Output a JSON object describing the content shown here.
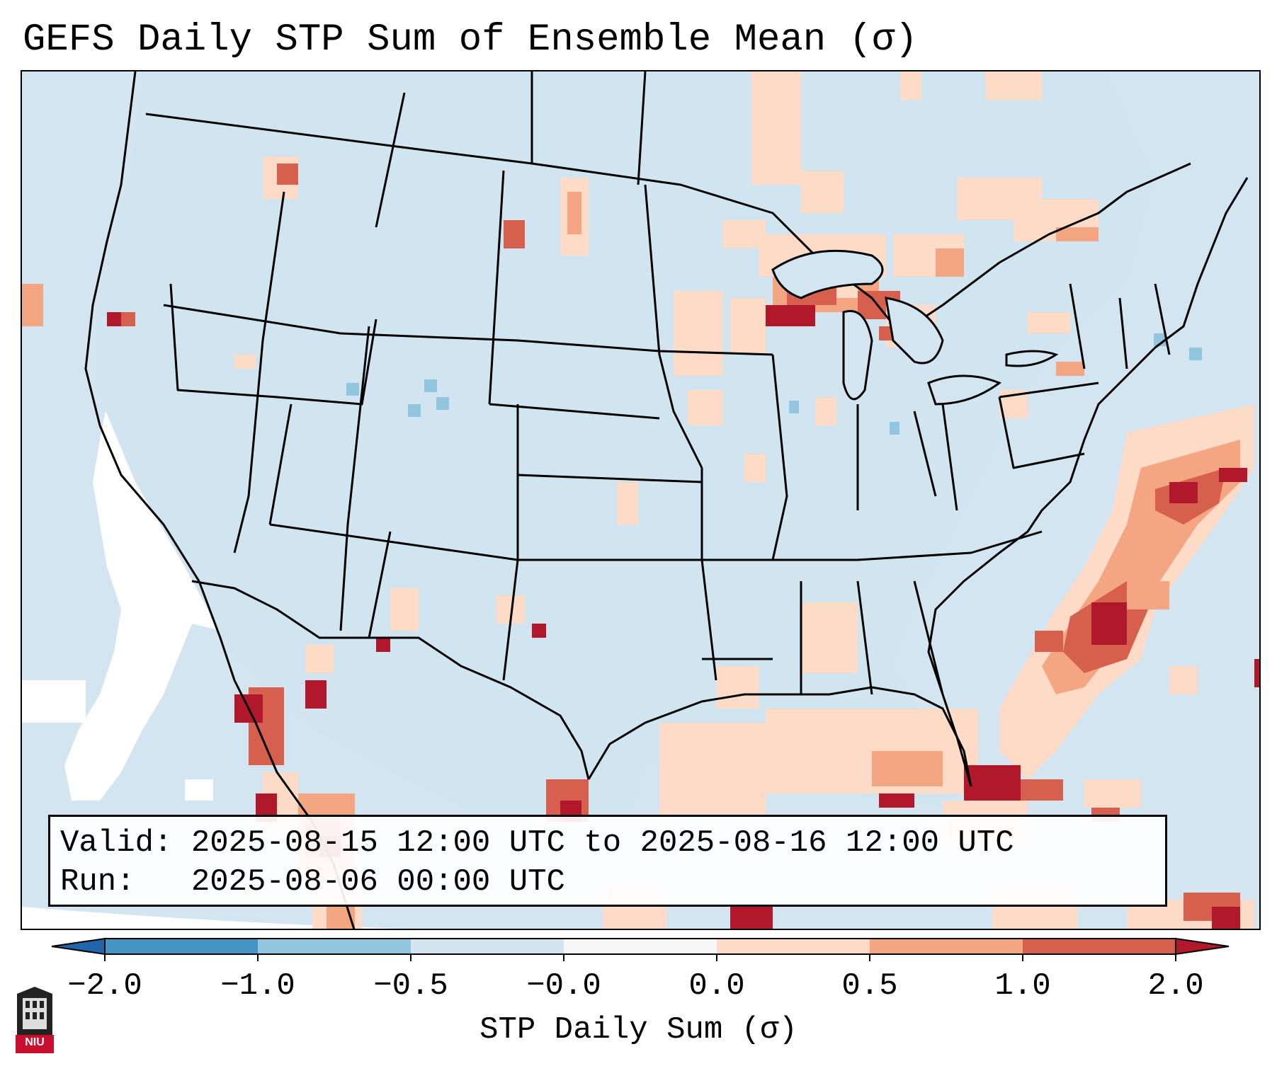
{
  "title": "GEFS Daily STP Sum of Ensemble Mean (σ)",
  "info": {
    "valid_label": "Valid:",
    "valid_value": "2025-08-15 12:00 UTC to 2025-08-16 12:00 UTC",
    "run_label": "Run:",
    "run_value": "2025-08-06 00:00 UTC"
  },
  "colorbar": {
    "label": "STP Daily Sum (σ)",
    "ticks": [
      "−2.0",
      "−1.0",
      "−0.5",
      "−0.0",
      "0.0",
      "0.5",
      "1.0",
      "2.0"
    ],
    "colors": [
      "#4393c3",
      "#92c5de",
      "#d1e5f0",
      "#f7f7f7",
      "#fddbc7",
      "#f4a582",
      "#d6604d",
      "#b2182b"
    ],
    "extend": "both"
  },
  "logo": {
    "text": "NIU",
    "color": "#c8102e"
  },
  "map": {
    "projection": "lambert-conformal",
    "region": "CONUS",
    "colors": {
      "ocean_background": "#d3e5f0",
      "land_background": "#d1e5f0",
      "neutral": "#ffffff",
      "light_positive": "#fddbc7",
      "moderate_positive": "#f4a582",
      "strong_positive": "#d6604d",
      "very_strong_positive": "#b2182b",
      "light_negative": "#92c5de"
    }
  }
}
